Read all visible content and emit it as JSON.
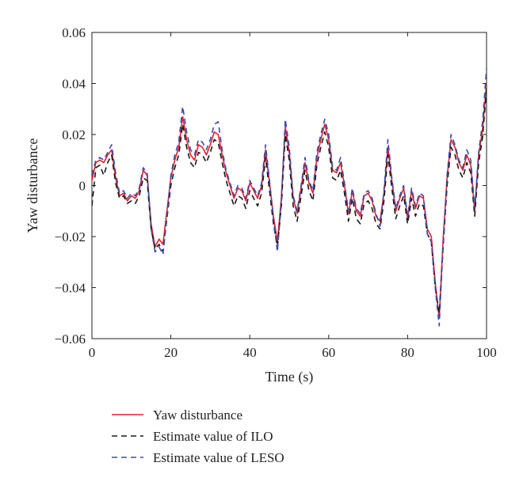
{
  "chart_data": {
    "type": "line",
    "title": "",
    "xlabel": "Time (s)",
    "ylabel": "Yaw disturbance",
    "xlim": [
      0,
      100
    ],
    "ylim": [
      -0.06,
      0.06
    ],
    "x_ticks": [
      0,
      20,
      40,
      60,
      80,
      100
    ],
    "y_ticks": [
      -0.06,
      -0.04,
      -0.02,
      0,
      0.02,
      0.04,
      0.06
    ],
    "x_tick_labels": [
      "0",
      "20",
      "40",
      "60",
      "80",
      "100"
    ],
    "y_tick_labels": [
      "−0.06",
      "−0.04",
      "−0.02",
      "0",
      "0.02",
      "0.04",
      "0.06"
    ],
    "grid": false,
    "legend_position": "bottom-left, below plot",
    "x": [
      0,
      1,
      2,
      3,
      4,
      5,
      6,
      7,
      8,
      9,
      10,
      11,
      12,
      13,
      14,
      15,
      16,
      17,
      18,
      19,
      20,
      21,
      22,
      23,
      24,
      25,
      26,
      27,
      28,
      29,
      30,
      31,
      32,
      33,
      34,
      35,
      36,
      37,
      38,
      39,
      40,
      41,
      42,
      43,
      44,
      45,
      46,
      47,
      48,
      49,
      50,
      51,
      52,
      53,
      54,
      55,
      56,
      57,
      58,
      59,
      60,
      61,
      62,
      63,
      64,
      65,
      66,
      67,
      68,
      69,
      70,
      71,
      72,
      73,
      74,
      75,
      76,
      77,
      78,
      79,
      80,
      81,
      82,
      83,
      84,
      85,
      86,
      87,
      88,
      89,
      90,
      91,
      92,
      93,
      94,
      95,
      96,
      97,
      98,
      99,
      100
    ],
    "series": [
      {
        "name": "Yaw disturbance",
        "color": "#e8202a",
        "dash": "solid",
        "values": [
          0.002,
          0.009,
          0.01,
          0.009,
          0.012,
          0.014,
          0.003,
          -0.004,
          -0.003,
          -0.006,
          -0.004,
          -0.005,
          -0.002,
          0.006,
          0.004,
          -0.015,
          -0.024,
          -0.021,
          -0.023,
          -0.01,
          0.003,
          0.01,
          0.015,
          0.027,
          0.018,
          0.012,
          0.01,
          0.016,
          0.015,
          0.012,
          0.016,
          0.021,
          0.02,
          0.012,
          0.005,
          0.0,
          -0.005,
          -0.001,
          -0.002,
          -0.006,
          0.001,
          -0.002,
          -0.005,
          0.0,
          0.014,
          0.001,
          -0.012,
          -0.022,
          -0.005,
          0.023,
          0.013,
          -0.005,
          -0.011,
          -0.001,
          0.009,
          0.001,
          -0.003,
          0.011,
          0.018,
          0.024,
          0.018,
          0.006,
          0.005,
          0.009,
          0.0,
          -0.011,
          -0.002,
          -0.01,
          -0.012,
          -0.004,
          -0.003,
          -0.006,
          -0.012,
          -0.014,
          -0.003,
          0.015,
          0.002,
          -0.01,
          -0.005,
          -0.001,
          -0.013,
          -0.002,
          -0.009,
          -0.004,
          -0.005,
          -0.017,
          -0.02,
          -0.038,
          -0.052,
          -0.021,
          0.003,
          0.018,
          0.015,
          0.009,
          0.006,
          0.012,
          0.008,
          -0.01,
          0.012,
          0.022,
          0.04
        ]
      },
      {
        "name": "Estimate value of ILO",
        "color": "#1a1a1a",
        "dash": "7,5",
        "values": [
          -0.008,
          0.007,
          0.008,
          0.004,
          0.009,
          0.012,
          0.001,
          -0.005,
          -0.004,
          -0.007,
          -0.006,
          -0.007,
          -0.004,
          0.003,
          0.002,
          -0.017,
          -0.025,
          -0.023,
          -0.026,
          -0.013,
          0.0,
          0.007,
          0.012,
          0.024,
          0.015,
          0.009,
          0.007,
          0.013,
          0.012,
          0.009,
          0.013,
          0.018,
          0.017,
          0.009,
          0.002,
          -0.003,
          -0.008,
          -0.004,
          -0.005,
          -0.009,
          -0.002,
          -0.005,
          -0.008,
          -0.003,
          0.011,
          -0.002,
          -0.015,
          -0.024,
          -0.008,
          0.02,
          0.01,
          -0.008,
          -0.014,
          -0.004,
          0.006,
          -0.002,
          -0.006,
          0.008,
          0.015,
          0.021,
          0.015,
          0.003,
          0.002,
          0.006,
          -0.003,
          -0.014,
          -0.005,
          -0.013,
          -0.015,
          -0.007,
          -0.006,
          -0.009,
          -0.015,
          -0.017,
          -0.006,
          0.012,
          -0.001,
          -0.013,
          -0.008,
          -0.004,
          -0.015,
          -0.005,
          -0.012,
          -0.007,
          -0.008,
          -0.019,
          -0.022,
          -0.04,
          -0.05,
          -0.024,
          0.0,
          0.015,
          0.012,
          0.006,
          0.003,
          0.009,
          0.005,
          -0.012,
          0.009,
          0.019,
          0.038
        ]
      },
      {
        "name": "Estimate value of LESO",
        "color": "#3b4bb0",
        "dash": "7,5",
        "values": [
          0.004,
          0.01,
          0.011,
          0.01,
          0.013,
          0.016,
          0.005,
          -0.003,
          -0.002,
          -0.005,
          -0.003,
          -0.004,
          -0.001,
          0.007,
          0.005,
          -0.017,
          -0.026,
          -0.024,
          -0.027,
          -0.012,
          0.004,
          0.012,
          0.017,
          0.031,
          0.021,
          0.014,
          0.012,
          0.018,
          0.017,
          0.014,
          0.018,
          0.024,
          0.025,
          0.014,
          0.006,
          0.001,
          -0.004,
          0.0,
          -0.001,
          -0.005,
          0.002,
          -0.001,
          -0.004,
          0.001,
          0.016,
          0.002,
          -0.013,
          -0.026,
          -0.006,
          0.026,
          0.015,
          -0.004,
          -0.01,
          0.0,
          0.011,
          0.002,
          -0.002,
          0.013,
          0.02,
          0.026,
          0.02,
          0.007,
          0.006,
          0.011,
          0.001,
          -0.01,
          -0.001,
          -0.009,
          -0.011,
          -0.003,
          -0.002,
          -0.005,
          -0.011,
          -0.016,
          -0.002,
          0.018,
          0.003,
          -0.009,
          -0.004,
          0.0,
          -0.012,
          -0.001,
          -0.008,
          -0.003,
          -0.004,
          -0.019,
          -0.022,
          -0.04,
          -0.055,
          -0.023,
          0.004,
          0.02,
          0.016,
          0.01,
          0.007,
          0.014,
          0.01,
          -0.009,
          0.013,
          0.025,
          0.046
        ]
      }
    ]
  }
}
